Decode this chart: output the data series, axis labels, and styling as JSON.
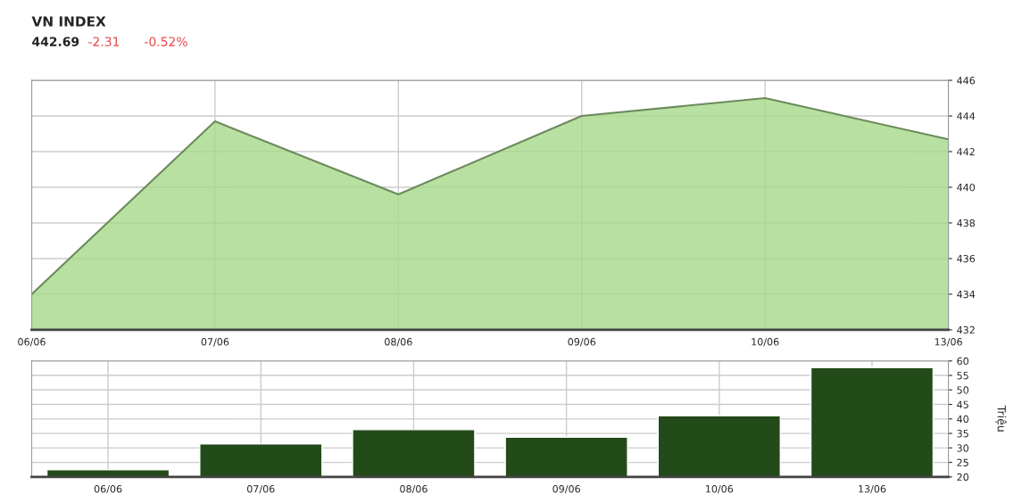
{
  "chart_data": [
    {
      "type": "area",
      "title": "VN INDEX",
      "annotations": [
        "442.69",
        "-2.31",
        "-0.52%"
      ],
      "categories": [
        "06/06",
        "07/06",
        "08/06",
        "09/06",
        "10/06",
        "13/06"
      ],
      "series": [
        {
          "color": "#a6d98a",
          "values": [
            434.0,
            443.7,
            439.6,
            444.0,
            445.0,
            442.69
          ]
        }
      ],
      "ylim": [
        432,
        446
      ],
      "yticks": [
        432,
        434,
        436,
        438,
        440,
        442,
        444,
        446
      ],
      "grid": true
    },
    {
      "type": "bar",
      "ylabel": "Triệu",
      "categories": [
        "06/06",
        "07/06",
        "08/06",
        "09/06",
        "10/06",
        "13/06"
      ],
      "series": [
        {
          "color": "#234a19",
          "values": [
            22.5,
            31.4,
            36.3,
            33.7,
            41.1,
            57.7
          ]
        }
      ],
      "ylim": [
        20,
        60
      ],
      "yticks": [
        20,
        25,
        30,
        35,
        40,
        45,
        50,
        55,
        60
      ],
      "grid": true
    }
  ]
}
